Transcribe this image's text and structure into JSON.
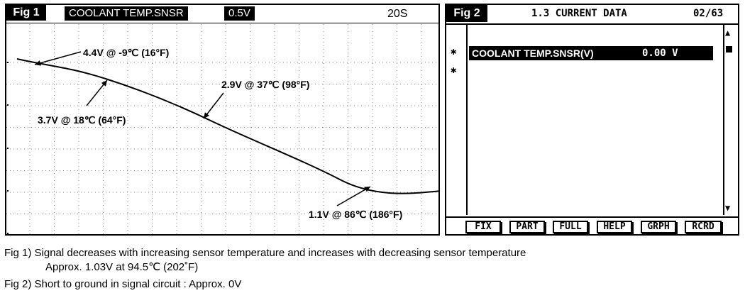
{
  "fig1": {
    "tag": "Fig 1",
    "title": "COOLANT TEMP.SNSR",
    "scale": "0.5V",
    "time": "20S",
    "annotations": [
      {
        "text": "4.4V @ -9℃ (16°F)"
      },
      {
        "text": "3.7V @ 18℃ (64°F)"
      },
      {
        "text": "2.9V @ 37℃ (98°F)"
      },
      {
        "text": "1.1V @ 86℃ (186°F)"
      }
    ]
  },
  "fig2": {
    "tag": "Fig 2",
    "title": "1.3 CURRENT DATA",
    "page": "02/63",
    "markers": [
      "✱",
      "✱"
    ],
    "row": {
      "label": "COOLANT TEMP.SNSR(V)",
      "value": "0.00 V"
    },
    "scroll": {
      "up": "▲",
      "down": "▼"
    },
    "buttons": [
      "FIX",
      "PART",
      "FULL",
      "HELP",
      "GRPH",
      "RCRD"
    ]
  },
  "captions": {
    "fig1_line1": "Fig 1) Signal decreases with increasing sensor temperature and increases with decreasing sensor temperature",
    "fig1_line2": "Approx. 1.03V at 94.5℃ (202˚F)",
    "fig2_line1": "Fig 2) Short to ground in signal circuit : Approx. 0V"
  }
}
